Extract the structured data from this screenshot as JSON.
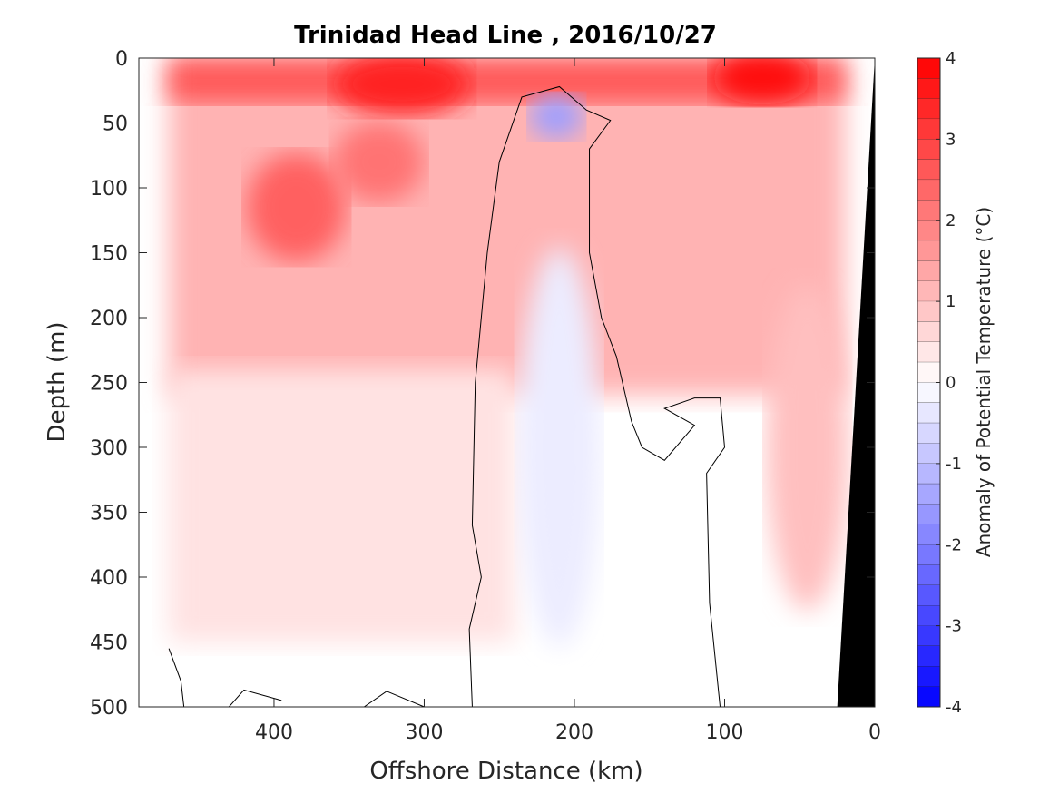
{
  "chart_data": {
    "type": "heatmap",
    "title": "Trinidad Head Line , 2016/10/27",
    "xlabel": "Offshore Distance (km)",
    "ylabel": "Depth (m)",
    "xlim": [
      490,
      0
    ],
    "ylim": [
      0,
      500
    ],
    "x_ticks": [
      400,
      300,
      200,
      100,
      0
    ],
    "y_ticks": [
      0,
      50,
      100,
      150,
      200,
      250,
      300,
      350,
      400,
      450,
      500
    ],
    "colorbar": {
      "label": "Anomaly of Potential Temperature (°C)",
      "range": [
        -4,
        4
      ],
      "step": 0.25,
      "ticks": [
        4,
        3,
        2,
        1,
        0,
        -1,
        -2,
        -3,
        -4
      ],
      "neg_color": "#0000ff",
      "pos_color": "#ff0000",
      "mid_color": "#ffffff"
    },
    "section": {
      "x_start": 470,
      "x_end": 20,
      "anomaly_features": [
        {
          "name": "surface warm core west",
          "x": 315,
          "depth": 20,
          "anomaly": 3.5
        },
        {
          "name": "surface warm core east",
          "x": 75,
          "depth": 15,
          "anomaly": 3.8
        },
        {
          "name": "subsurface warm patch",
          "x": 385,
          "depth": 115,
          "anomaly": 2.5
        },
        {
          "name": "subsurface warm patch 2",
          "x": 330,
          "depth": 80,
          "anomaly": 2.2
        },
        {
          "name": "warm nearshore column",
          "x": 45,
          "depth": 300,
          "anomaly": 1.0
        },
        {
          "name": "cold core",
          "x": 212,
          "depth": 45,
          "anomaly": -1.5
        },
        {
          "name": "cold column",
          "x": 210,
          "depth": 300,
          "anomaly": -0.3
        }
      ],
      "zero_contours": [
        [
          [
            268,
            500
          ],
          [
            270,
            440
          ],
          [
            262,
            400
          ],
          [
            268,
            360
          ],
          [
            266,
            250
          ],
          [
            258,
            150
          ],
          [
            250,
            80
          ],
          [
            235,
            30
          ],
          [
            210,
            22
          ],
          [
            192,
            40
          ],
          [
            176,
            48
          ],
          [
            190,
            70
          ],
          [
            190,
            150
          ],
          [
            182,
            200
          ],
          [
            172,
            230
          ],
          [
            162,
            280
          ],
          [
            155,
            300
          ],
          [
            140,
            310
          ],
          [
            120,
            283
          ],
          [
            140,
            270
          ],
          [
            120,
            262
          ],
          [
            103,
            262
          ],
          [
            100,
            300
          ],
          [
            112,
            320
          ],
          [
            110,
            420
          ],
          [
            103,
            500
          ]
        ],
        [
          [
            470,
            455
          ],
          [
            462,
            480
          ],
          [
            460,
            500
          ]
        ],
        [
          [
            430,
            500
          ],
          [
            420,
            487
          ],
          [
            395,
            495
          ]
        ],
        [
          [
            340,
            500
          ],
          [
            325,
            488
          ],
          [
            300,
            500
          ]
        ]
      ]
    },
    "bathymetry": {
      "color": "#000000",
      "points": [
        [
          0,
          0
        ],
        [
          25,
          500
        ],
        [
          0,
          500
        ]
      ]
    }
  }
}
